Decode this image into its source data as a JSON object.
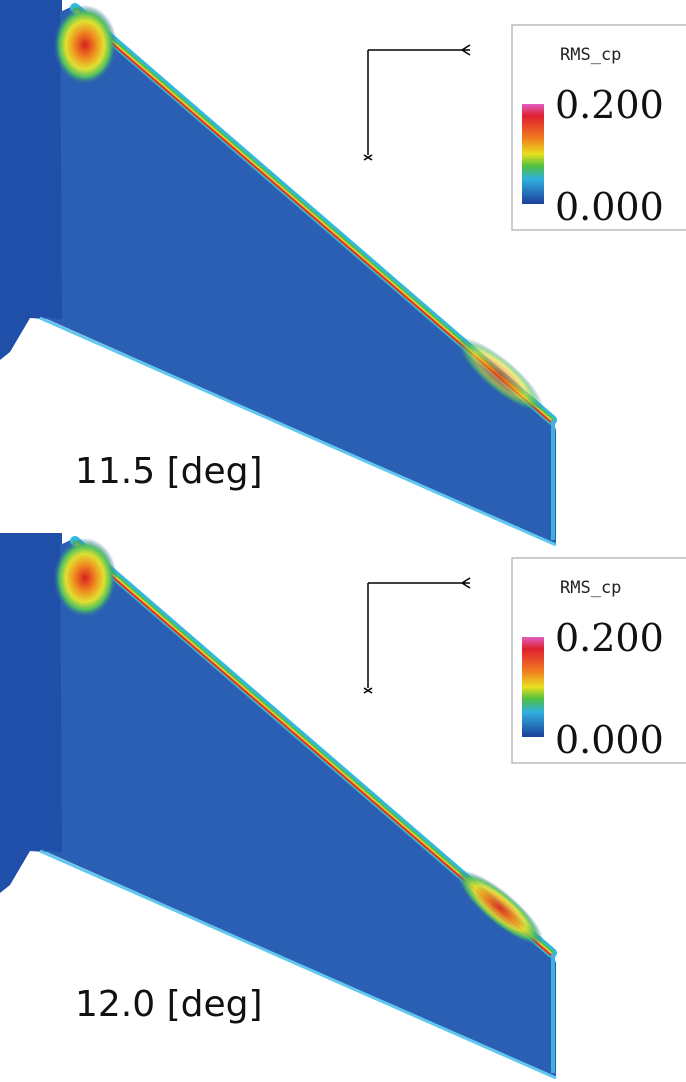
{
  "panels": [
    {
      "label": "11.5 [deg]",
      "legend": {
        "title": "RMS_cp",
        "max": "0.200",
        "min": "0.000"
      }
    },
    {
      "label": "12.0 [deg]",
      "legend": {
        "title": "RMS_cp",
        "max": "0.200",
        "min": "0.000"
      }
    }
  ]
}
